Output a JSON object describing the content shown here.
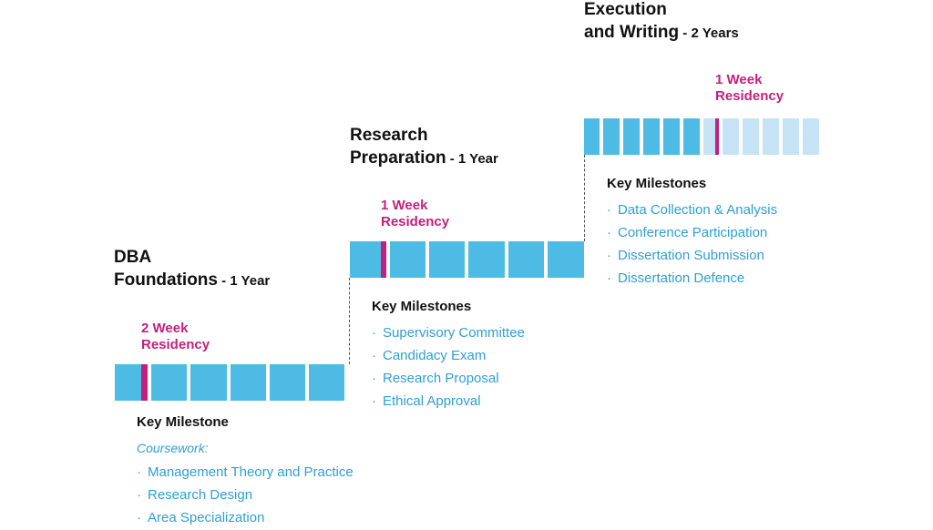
{
  "stages": [
    {
      "title_line1": "DBA",
      "title_line2": "Foundations",
      "duration": " - 1 Year",
      "residency_line1": "2 Week",
      "residency_line2": "Residency",
      "milestone_heading": "Key Milestone",
      "milestone_subheading": "Coursework:",
      "milestones": [
        "Management Theory and Practice",
        "Research Design",
        "Area Specialization"
      ]
    },
    {
      "title_line1": "Research",
      "title_line2": "Preparation",
      "duration": " - 1 Year",
      "residency_line1": "1 Week",
      "residency_line2": "Residency",
      "milestone_heading": "Key Milestones",
      "milestones": [
        "Supervisory Committee",
        "Candidacy Exam",
        "Research Proposal",
        "Ethical Approval"
      ]
    },
    {
      "title_line1": "Execution",
      "title_line2": "and Writing",
      "duration": " - 2 Years",
      "residency_line1": "1 Week",
      "residency_line2": "Residency",
      "milestone_heading": "Key Milestones",
      "milestones": [
        "Data Collection & Analysis",
        "Conference Participation",
        "Dissertation Submission",
        "Dissertation Defence"
      ]
    }
  ],
  "bullet": "·",
  "colors": {
    "bar": "#4dbbe3",
    "bar_light": "#c6e3f5",
    "residency": "#c41f7c",
    "milestone_text": "#2f9fd6"
  }
}
